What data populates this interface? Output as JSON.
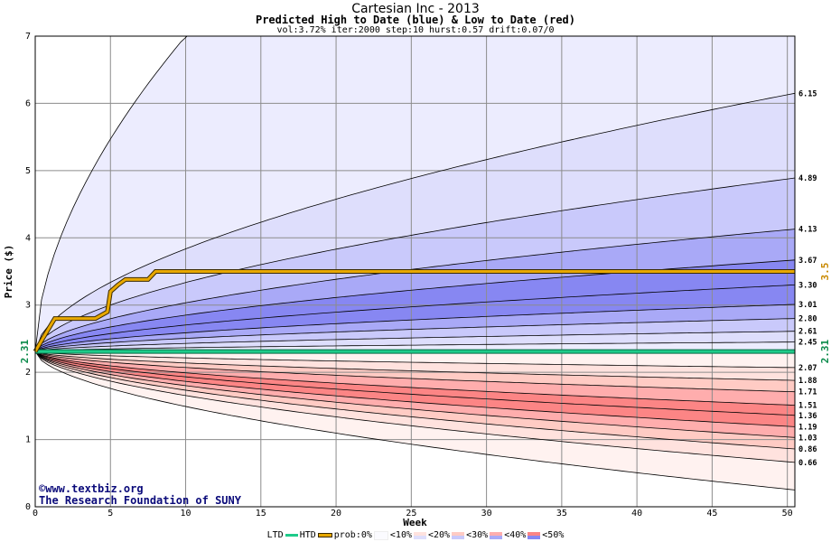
{
  "header": {
    "title": "Cartesian Inc - 2013",
    "subtitle": "Predicted High to Date (blue) &  Low to Date (red)",
    "params": "vol:3.72% iter:2000 step:10 hurst:0.57 drift:0.07/0"
  },
  "watermark": {
    "line1": "©www.textbiz.org",
    "line2": "The Research Foundation of SUNY"
  },
  "legend": {
    "ltd": "LTD",
    "htd": "HTD",
    "prob": "prob:0%",
    "b10": "<10%",
    "b20": "<20%",
    "b30": "<30%",
    "b40": "<40%",
    "b50": "<50%"
  },
  "colors": {
    "ltd_line": "#1ecb8a",
    "htd_line": "#e8a800",
    "blue_bands": [
      "#ececfe",
      "#dedefc",
      "#c9c9fb",
      "#a9a9f7",
      "#8787f2"
    ],
    "red_bands": [
      "#fff2f0",
      "#ffe2de",
      "#ffcbc4",
      "#ffadad",
      "#fc8585"
    ]
  },
  "chart_data": {
    "type": "area",
    "title": "Cartesian Inc - 2013",
    "subtitle": "Predicted High to Date (blue) &  Low to Date (red)",
    "xlabel": "Week",
    "ylabel": "Price ($)",
    "xlim": [
      0,
      50.5
    ],
    "ylim": [
      0,
      7
    ],
    "xticks": [
      0,
      5,
      10,
      15,
      20,
      25,
      30,
      35,
      40,
      45,
      50
    ],
    "yticks": [
      0,
      1,
      2,
      3,
      4,
      5,
      6,
      7
    ],
    "grid": true,
    "start_price": 2.31,
    "start_price_label": "2.31",
    "ltd_value": 2.31,
    "ltd_label": "2.31",
    "htd_value": 3.5,
    "htd_label": "3.5",
    "blue_end_values": [
      6.15,
      4.89,
      4.13,
      3.67,
      3.3,
      3.01,
      2.8,
      2.61,
      2.45
    ],
    "blue_end_labels": [
      "6.15",
      "4.89",
      "4.13",
      "3.67",
      "3.30",
      "3.01",
      "2.80",
      "2.61",
      "2.45"
    ],
    "red_end_values": [
      2.07,
      1.88,
      1.71,
      1.51,
      1.36,
      1.19,
      1.03,
      0.86,
      0.66
    ],
    "red_end_labels": [
      "2.07",
      "1.88",
      "1.71",
      "1.51",
      "1.36",
      "1.19",
      "1.03",
      "0.86",
      "0.66"
    ],
    "outer_high_end": 7.0,
    "outer_high_reach_week": 10,
    "outer_low_end": 0.25,
    "htd_path": [
      {
        "x": 0,
        "y": 2.31
      },
      {
        "x": 0.5,
        "y": 2.5
      },
      {
        "x": 1.3,
        "y": 2.8
      },
      {
        "x": 4,
        "y": 2.8
      },
      {
        "x": 4.8,
        "y": 2.9
      },
      {
        "x": 5,
        "y": 3.2
      },
      {
        "x": 5.5,
        "y": 3.3
      },
      {
        "x": 6,
        "y": 3.38
      },
      {
        "x": 7.5,
        "y": 3.38
      },
      {
        "x": 8,
        "y": 3.5
      },
      {
        "x": 50.5,
        "y": 3.5
      }
    ]
  }
}
